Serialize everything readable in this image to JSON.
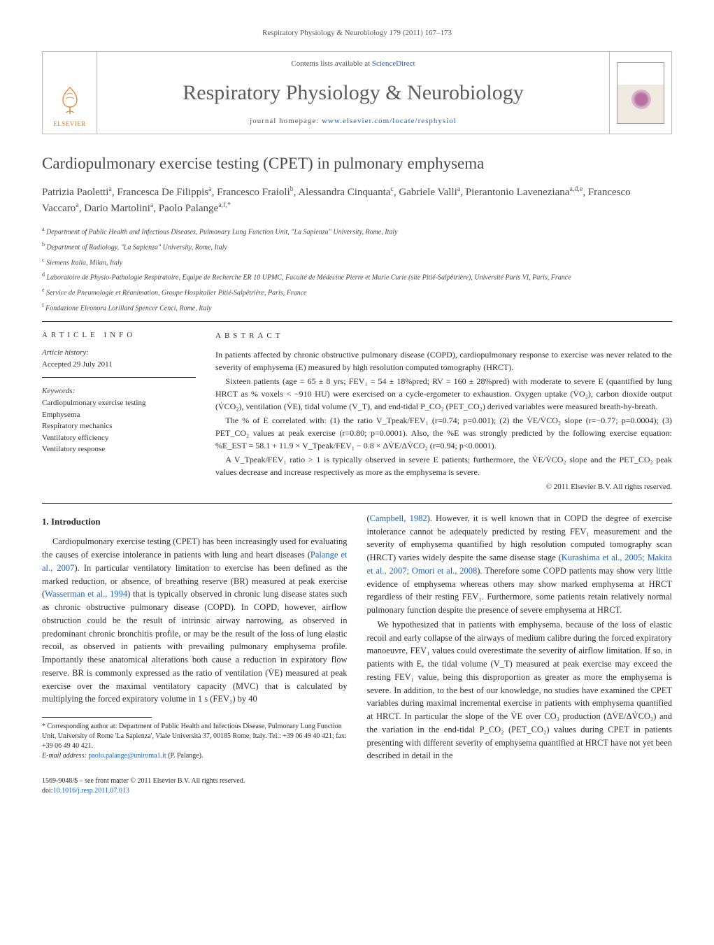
{
  "header_ref": "Respiratory Physiology & Neurobiology 179 (2011) 167–173",
  "masthead": {
    "publisher_label": "ELSEVIER",
    "contents_prefix": "Contents lists available at ",
    "contents_link": "ScienceDirect",
    "journal_title": "Respiratory Physiology & Neurobiology",
    "homepage_prefix": "journal homepage: ",
    "homepage_link": "www.elsevier.com/locate/resphysiol"
  },
  "article": {
    "title": "Cardiopulmonary exercise testing (CPET) in pulmonary emphysema",
    "authors_html": "Patrizia Paoletti<sup>a</sup>, Francesca De Filippis<sup>a</sup>, Francesco Fraioli<sup>b</sup>, Alessandra Cinquanta<sup>c</sup>, Gabriele Valli<sup>a</sup>, Pierantonio Laveneziana<sup>a,d,e</sup>, Francesco Vaccaro<sup>a</sup>, Dario Martolini<sup>a</sup>, Paolo Palange<sup>a,f,*</sup>"
  },
  "affiliations": [
    "a  Department of Public Health and Infectious Diseases, Pulmonary Lung Function Unit, \"La Sapienza\" University, Rome, Italy",
    "b  Department of Radiology, \"La Sapienza\" University, Rome, Italy",
    "c  Siemens Italia, Milan, Italy",
    "d  Laboratoire de Physio-Pathologie Respiratoire, Equipe de Recherche ER 10 UPMC, Faculté de Médecine Pierre et Marie Curie (site Pitié-Salpêtrière), Université Paris VI, Paris, France",
    "e  Service de Pneumologie et Réanimation, Groupe Hospitalier Pitié-Salpêtrière, Paris, France",
    "f  Fondazione Eleonora Lorillard Spencer Cenci, Rome, Italy"
  ],
  "info": {
    "heading": "article info",
    "history_label": "Article history:",
    "history_line": "Accepted 29 July 2011",
    "keywords_label": "Keywords:",
    "keywords": [
      "Cardiopulmonary exercise testing",
      "Emphysema",
      "Respiratory mechanics",
      "Ventilatory efficiency",
      "Ventilatory response"
    ]
  },
  "abstract": {
    "heading": "abstract",
    "p1": "In patients affected by chronic obstructive pulmonary disease (COPD), cardiopulmonary response to exercise was never related to the severity of emphysema (E) measured by high resolution computed tomography (HRCT).",
    "p2": "Sixteen patients (age = 65 ± 8 yrs; FEV₁ = 54 ± 18%pred; RV = 160 ± 28%pred) with moderate to severe E (quantified by lung HRCT as % voxels < −910 HU) were exercised on a cycle-ergometer to exhaustion. Oxygen uptake (V̇O₂), carbon dioxide output (V̇CO₂), ventilation (V̇E), tidal volume (V_T), and end-tidal P_CO₂ (PET_CO₂) derived variables were measured breath-by-breath.",
    "p3": "The % of E correlated with: (1) the ratio V_Tpeak/FEV₁ (r=0.74; p=0.001); (2) the V̇E/V̇CO₂ slope (r=−0.77; p=0.0004); (3) PET_CO₂ values at peak exercise (r=0.80; p=0.0001). Also, the %E was strongly predicted by the following exercise equation: %E_EST = 58.1 + 11.9 × V_Tpeak/FEV₁ − 0.8 × ΔV̇E/ΔV̇CO₂ (r=0.94; p<0.0001).",
    "p4": "A V_Tpeak/FEV₁ ratio > 1 is typically observed in severe E patients; furthermore, the V̇E/V̇CO₂ slope and the PET_CO₂ peak values decrease and increase respectively as more as the emphysema is severe.",
    "copyright": "© 2011 Elsevier B.V. All rights reserved."
  },
  "body": {
    "section_heading": "1.  Introduction",
    "p1_pre": "Cardiopulmonary exercise testing (CPET) has been increasingly used for evaluating the causes of exercise intolerance in patients with lung and heart diseases (",
    "p1_cite1": "Palange et al., 2007",
    "p1_mid1": "). In particular ventilatory limitation to exercise has been defined as the marked reduction, or absence, of breathing reserve (BR) measured at peak exercise (",
    "p1_cite2": "Wasserman et al., 1994",
    "p1_post": ") that is typically observed in chronic lung disease states such as chronic obstructive pulmonary disease (COPD). In COPD, however, airflow obstruction could be the result of intrinsic airway narrowing, as observed in predominant chronic bronchitis profile, or may be the result of the loss of lung elastic recoil, as observed in patients with prevailing pulmonary emphysema profile. Importantly these anatomical alterations both cause a reduction in expiratory flow reserve. BR is commonly expressed as the ratio of ventilation (V̇E) measured at peak exercise over the maximal ventilatory capacity (MVC) that is calculated by multiplying the forced expiratory volume in 1 s (FEV₁) by 40",
    "col2_pre": "(",
    "col2_cite1": "Campbell, 1982",
    "col2_mid1": "). However, it is well known that in COPD the degree of exercise intolerance cannot be adequately predicted by resting FEV₁ measurement and the severity of emphysema quantified by high resolution computed tomography scan (HRCT) varies widely despite the same disease stage (",
    "col2_cite2": "Kurashima et al., 2005; Makita et al., 2007; Omori et al., 2008",
    "col2_post1": "). Therefore some COPD patients may show very little evidence of emphysema whereas others may show marked emphysema at HRCT regardless of their resting FEV₁. Furthermore, some patients retain relatively normal pulmonary function despite the presence of severe emphysema at HRCT.",
    "p2": "We hypothesized that in patients with emphysema, because of the loss of elastic recoil and early collapse of the airways of medium calibre during the forced expiratory manoeuvre, FEV₁ values could overestimate the severity of airflow limitation. If so, in patients with E, the tidal volume (V_T) measured at peak exercise may exceed the resting FEV₁ value, being this disproportion as greater as more the emphysema is severe. In addition, to the best of our knowledge, no studies have examined the CPET variables during maximal incremental exercise in patients with emphysema quantified at HRCT. In particular the slope of the V̇E over CO₂ production (ΔV̇E/ΔV̇CO₂) and the variation in the end-tidal P_CO₂ (PET_CO₂) values during CPET in patients presenting with different severity of emphysema quantified at HRCT have not yet been described in detail in the"
  },
  "footnotes": {
    "corr_label": "* Corresponding author at: Department of Public Health and Infectious Disease, Pulmonary Lung Function Unit, University of Rome 'La Sapienza', Viale Università 37, 00185 Rome, Italy. Tel.: +39 06 49 40 421; fax: +39 06 49 40 421.",
    "email_label": "E-mail address: ",
    "email": "paolo.palange@uniroma1.it",
    "email_suffix": " (P. Palange)."
  },
  "footer": {
    "left_line1": "1569-9048/$ – see front matter © 2011 Elsevier B.V. All rights reserved.",
    "doi_prefix": "doi:",
    "doi": "10.1016/j.resp.2011.07.013"
  },
  "colors": {
    "link": "#1861c4",
    "publisher": "#e67a1a",
    "text": "#2a2a2a",
    "rule": "#222222"
  },
  "typography": {
    "body_pt": 12.5,
    "title_pt": 23,
    "journal_title_pt": 30,
    "abstract_pt": 12,
    "footnote_pt": 10
  }
}
